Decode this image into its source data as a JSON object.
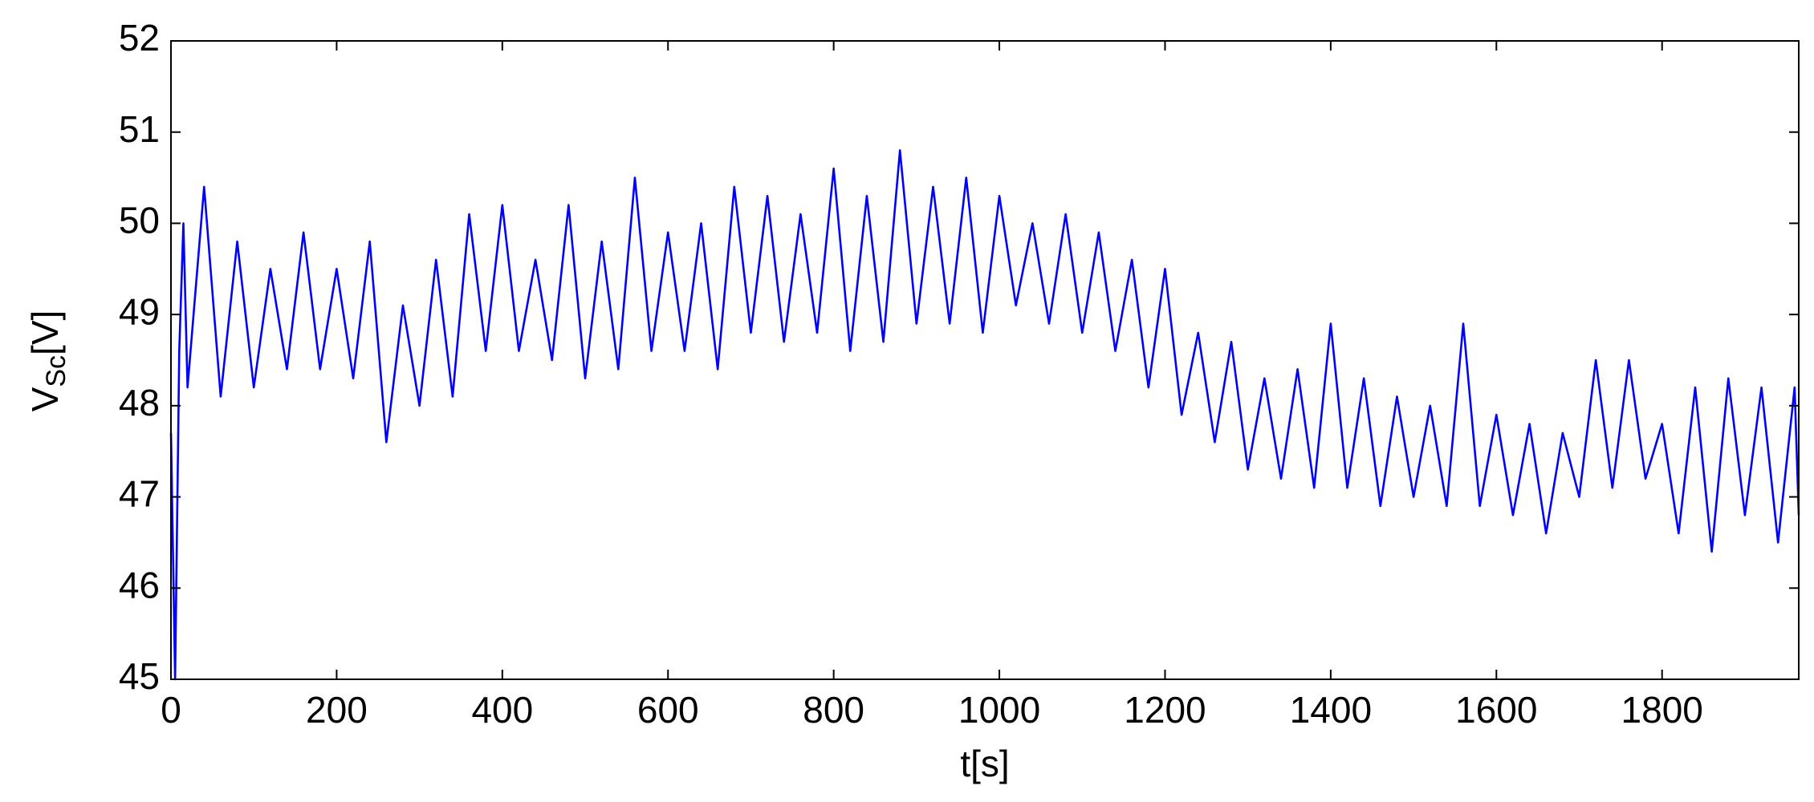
{
  "chart_data": {
    "type": "line",
    "xlabel": "t[s]",
    "ylabel": [
      "V",
      "Sc",
      "[V]"
    ],
    "x": [
      0,
      5,
      10,
      15,
      20,
      40,
      60,
      80,
      100,
      120,
      140,
      160,
      180,
      200,
      220,
      240,
      260,
      280,
      300,
      320,
      340,
      360,
      380,
      400,
      420,
      440,
      460,
      480,
      500,
      520,
      540,
      560,
      580,
      600,
      620,
      640,
      660,
      680,
      700,
      720,
      740,
      760,
      780,
      800,
      820,
      840,
      860,
      880,
      900,
      920,
      940,
      960,
      980,
      1000,
      1020,
      1040,
      1060,
      1080,
      1100,
      1120,
      1140,
      1160,
      1180,
      1200,
      1220,
      1240,
      1260,
      1280,
      1300,
      1320,
      1340,
      1360,
      1380,
      1400,
      1420,
      1440,
      1460,
      1480,
      1500,
      1520,
      1540,
      1560,
      1580,
      1600,
      1620,
      1640,
      1660,
      1680,
      1700,
      1720,
      1740,
      1760,
      1780,
      1800,
      1820,
      1840,
      1860,
      1880,
      1900,
      1920,
      1940,
      1960,
      1965
    ],
    "series": [
      {
        "color": "#0000ff",
        "values": [
          47.7,
          45.0,
          48.6,
          50.0,
          48.2,
          50.4,
          48.1,
          49.8,
          48.2,
          49.5,
          48.4,
          49.9,
          48.4,
          49.5,
          48.3,
          49.8,
          47.6,
          49.1,
          48.0,
          49.6,
          48.1,
          50.1,
          48.6,
          50.2,
          48.6,
          49.6,
          48.5,
          50.2,
          48.3,
          49.8,
          48.4,
          50.5,
          48.6,
          49.9,
          48.6,
          50.0,
          48.4,
          50.4,
          48.8,
          50.3,
          48.7,
          50.1,
          48.8,
          50.6,
          48.6,
          50.3,
          48.7,
          50.8,
          48.9,
          50.4,
          48.9,
          50.5,
          48.8,
          50.3,
          49.1,
          50.0,
          48.9,
          50.1,
          48.8,
          49.9,
          48.6,
          49.6,
          48.2,
          49.5,
          47.9,
          48.8,
          47.6,
          48.7,
          47.3,
          48.3,
          47.2,
          48.4,
          47.1,
          48.9,
          47.1,
          48.3,
          46.9,
          48.1,
          47.0,
          48.0,
          46.9,
          48.9,
          46.9,
          47.9,
          46.8,
          47.8,
          46.6,
          47.7,
          47.0,
          48.5,
          47.1,
          48.5,
          47.2,
          47.8,
          46.6,
          48.2,
          46.4,
          48.3,
          46.8,
          48.2,
          46.5,
          48.2,
          46.8
        ]
      }
    ],
    "xlim": [
      0,
      1965
    ],
    "ylim": [
      45,
      52
    ],
    "xticks": [
      0,
      200,
      400,
      600,
      800,
      1000,
      1200,
      1400,
      1600,
      1800
    ],
    "yticks": [
      45,
      46,
      47,
      48,
      49,
      50,
      51,
      52
    ],
    "grid": false
  }
}
